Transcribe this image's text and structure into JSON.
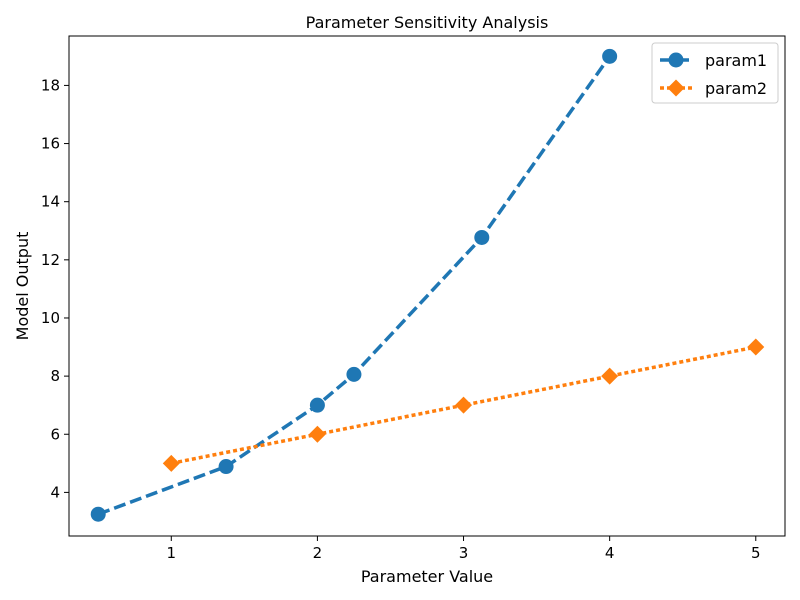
{
  "chart_data": {
    "type": "line",
    "title": "Parameter Sensitivity Analysis",
    "xlabel": "Parameter Value",
    "ylabel": "Model Output",
    "xlim": [
      0.3,
      5.2
    ],
    "ylim": [
      2.5,
      19.7
    ],
    "xticks": [
      1,
      2,
      3,
      4,
      5
    ],
    "yticks": [
      4,
      6,
      8,
      10,
      12,
      14,
      16,
      18
    ],
    "grid": false,
    "legend_position": "top-right",
    "series": [
      {
        "name": "param1",
        "color": "#1f77b4",
        "marker": "circle",
        "linestyle": "dashed",
        "x": [
          0.5,
          1.375,
          2.0,
          2.25,
          3.125,
          4.0
        ],
        "y": [
          3.25,
          4.89,
          7.0,
          8.06,
          12.77,
          19.0
        ]
      },
      {
        "name": "param2",
        "color": "#ff7f0e",
        "marker": "diamond",
        "linestyle": "dotted",
        "x": [
          1,
          2,
          3,
          4,
          5
        ],
        "y": [
          5,
          6,
          7,
          8,
          9
        ]
      }
    ]
  }
}
